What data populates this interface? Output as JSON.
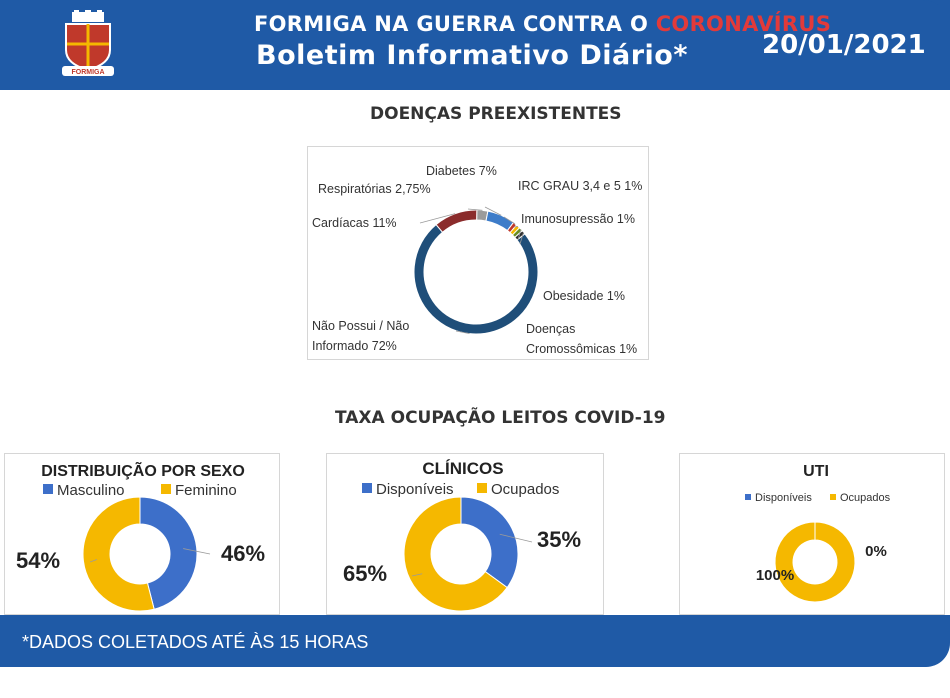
{
  "header": {
    "title_prefix": "FORMIGA NA GUERRA CONTRA O ",
    "title_highlight": "CORONAVÍRUS",
    "subtitle": "Boletim Informativo Diário*",
    "date": "20/01/2021",
    "logo_text": "FORMIGA"
  },
  "sections": {
    "diseases_title": "DOENÇAS PREEXISTENTES",
    "beds_title": "TAXA OCUPAÇÃO LEITOS COVID-19"
  },
  "footer": {
    "note": "*DADOS COLETADOS ATÉ ÀS 15 HORAS"
  },
  "colors": {
    "blue": "#1f5aa6",
    "navy": "#1f4e79",
    "gold": "#f5b800",
    "maroon": "#8b2c2c",
    "red": "#c0392b",
    "steel": "#3d7cc9"
  },
  "chart_data": [
    {
      "type": "pie",
      "title": "",
      "slices": [
        {
          "label": "Não Possui / Não Informado 72%",
          "label_lines": [
            "Não Possui / Não",
            "Informado 72%"
          ],
          "value": 72,
          "color": "#1f4e79"
        },
        {
          "label": "Cardíacas 11%",
          "label_lines": [
            "Cardíacas 11%"
          ],
          "value": 11,
          "color": "#8b2c2c"
        },
        {
          "label": "Respiratórias 2,75%",
          "label_lines": [
            "Respiratórias 2,75%"
          ],
          "value": 2.75,
          "color": "#9b9b9b"
        },
        {
          "label": "Diabetes 7%",
          "label_lines": [
            "Diabetes 7%"
          ],
          "value": 7,
          "color": "#3d7cc9"
        },
        {
          "label": "IRC GRAU 3,4 e 5 1%",
          "label_lines": [
            "IRC GRAU 3,4 e 5 1%"
          ],
          "value": 1,
          "color": "#c0392b"
        },
        {
          "label": "Imunosupressão 1%",
          "label_lines": [
            "Imunosupressão 1%"
          ],
          "value": 1,
          "color": "#f5b800"
        },
        {
          "label": "Obesidade 1%",
          "label_lines": [
            "Obesidade 1%"
          ],
          "value": 1,
          "color": "#6b8e23"
        },
        {
          "label": "Doenças Cromossômicas 1%",
          "label_lines": [
            "Doenças",
            "Cromossômicas 1%"
          ],
          "value": 1,
          "color": "#2e2e2e"
        }
      ]
    },
    {
      "type": "pie",
      "title": "DISTRIBUIÇÃO POR SEXO",
      "legend": [
        "Masculino",
        "Feminino"
      ],
      "slices": [
        {
          "label": "Masculino",
          "value": 46,
          "value_label": "46%",
          "color": "#3d6fc9"
        },
        {
          "label": "Feminino",
          "value": 54,
          "value_label": "54%",
          "color": "#f5b800"
        }
      ]
    },
    {
      "type": "pie",
      "title": "CLÍNICOS",
      "legend": [
        "Disponíveis",
        "Ocupados"
      ],
      "slices": [
        {
          "label": "Disponíveis",
          "value": 35,
          "value_label": "35%",
          "color": "#3d6fc9"
        },
        {
          "label": "Ocupados",
          "value": 65,
          "value_label": "65%",
          "color": "#f5b800"
        }
      ]
    },
    {
      "type": "pie",
      "title": "UTI",
      "legend": [
        "Disponíveis",
        "Ocupados"
      ],
      "slices": [
        {
          "label": "Disponíveis",
          "value": 0,
          "value_label": "0%",
          "color": "#3d6fc9"
        },
        {
          "label": "Ocupados",
          "value": 100,
          "value_label": "100%",
          "color": "#f5b800"
        }
      ]
    }
  ]
}
